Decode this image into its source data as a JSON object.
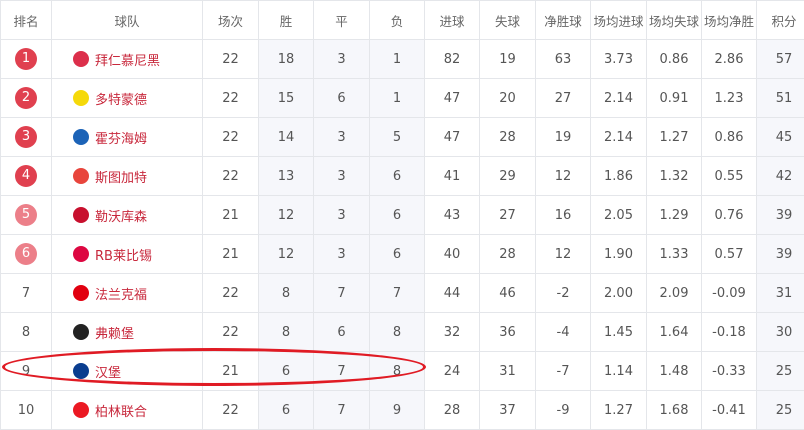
{
  "headers": [
    "排名",
    "球队",
    "场次",
    "胜",
    "平",
    "负",
    "进球",
    "失球",
    "净胜球",
    "场均进球",
    "场均失球",
    "场均净胜",
    "积分"
  ],
  "rows": [
    {
      "rank": "1",
      "team": "拜仁慕尼黑",
      "logo": "bayern-logo-icon",
      "logo_color": "#dc2f4b",
      "stats": [
        "22",
        "18",
        "3",
        "1",
        "82",
        "19",
        "63",
        "3.73",
        "0.86",
        "2.86",
        "57"
      ],
      "badge": "#e0404f"
    },
    {
      "rank": "2",
      "team": "多特蒙德",
      "logo": "dortmund-logo-icon",
      "logo_color": "#f5d90a",
      "stats": [
        "22",
        "15",
        "6",
        "1",
        "47",
        "20",
        "27",
        "2.14",
        "0.91",
        "1.23",
        "51"
      ],
      "badge": "#e0404f"
    },
    {
      "rank": "3",
      "team": "霍芬海姆",
      "logo": "hoffenheim-logo-icon",
      "logo_color": "#1c63b7",
      "stats": [
        "22",
        "14",
        "3",
        "5",
        "47",
        "28",
        "19",
        "2.14",
        "1.27",
        "0.86",
        "45"
      ],
      "badge": "#e0404f"
    },
    {
      "rank": "4",
      "team": "斯图加特",
      "logo": "stuttgart-logo-icon",
      "logo_color": "#e8453c",
      "stats": [
        "22",
        "13",
        "3",
        "6",
        "41",
        "29",
        "12",
        "1.86",
        "1.32",
        "0.55",
        "42"
      ],
      "badge": "#e0404f"
    },
    {
      "rank": "5",
      "team": "勒沃库森",
      "logo": "leverkusen-logo-icon",
      "logo_color": "#c8102e",
      "stats": [
        "21",
        "12",
        "3",
        "6",
        "43",
        "27",
        "16",
        "2.05",
        "1.29",
        "0.76",
        "39"
      ],
      "badge": "#ec7f89"
    },
    {
      "rank": "6",
      "team": "RB莱比锡",
      "logo": "leipzig-logo-icon",
      "logo_color": "#dd0741",
      "stats": [
        "21",
        "12",
        "3",
        "6",
        "40",
        "28",
        "12",
        "1.90",
        "1.33",
        "0.57",
        "39"
      ],
      "badge": "#ec7f89"
    },
    {
      "rank": "7",
      "team": "法兰克福",
      "logo": "frankfurt-logo-icon",
      "logo_color": "#e1000f",
      "stats": [
        "22",
        "8",
        "7",
        "7",
        "44",
        "46",
        "-2",
        "2.00",
        "2.09",
        "-0.09",
        "31"
      ],
      "badge": ""
    },
    {
      "rank": "8",
      "team": "弗赖堡",
      "logo": "freiburg-logo-icon",
      "logo_color": "#222222",
      "stats": [
        "22",
        "8",
        "6",
        "8",
        "32",
        "36",
        "-4",
        "1.45",
        "1.64",
        "-0.18",
        "30"
      ],
      "badge": ""
    },
    {
      "rank": "9",
      "team": "汉堡",
      "logo": "hamburg-logo-icon",
      "logo_color": "#0a3d8f",
      "stats": [
        "21",
        "6",
        "7",
        "8",
        "24",
        "31",
        "-7",
        "1.14",
        "1.48",
        "-0.33",
        "25"
      ],
      "badge": ""
    },
    {
      "rank": "10",
      "team": "柏林联合",
      "logo": "union-berlin-logo-icon",
      "logo_color": "#eb1923",
      "stats": [
        "22",
        "6",
        "7",
        "9",
        "28",
        "37",
        "-9",
        "1.27",
        "1.68",
        "-0.41",
        "25"
      ],
      "badge": ""
    }
  ],
  "highlight_color": "#e01b24"
}
